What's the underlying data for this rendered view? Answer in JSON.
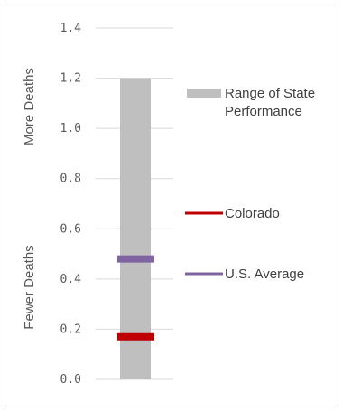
{
  "chart_data": {
    "type": "bar",
    "title": "",
    "xlabel": "",
    "ylabel": "",
    "ylim": [
      0,
      1.4
    ],
    "y_ticks": [
      "0.0",
      "0.2",
      "0.4",
      "0.6",
      "0.8",
      "1.0",
      "1.2",
      "1.4"
    ],
    "grid": true,
    "side_labels": {
      "top": "More Deaths",
      "bottom": "Fewer Deaths"
    },
    "range": {
      "name": "Range of State Performance",
      "min": 0.0,
      "max": 1.2,
      "color": "#bfbfbf"
    },
    "markers": [
      {
        "name": "Colorado",
        "value": 0.17,
        "color": "#c00000"
      },
      {
        "name": "U.S. Average",
        "value": 0.48,
        "color": "#8064a2"
      }
    ],
    "legend": [
      {
        "label_lines": [
          "Range of State",
          "Performance"
        ],
        "kind": "box",
        "color": "#bfbfbf"
      },
      {
        "label_lines": [
          "Colorado"
        ],
        "kind": "line",
        "color": "#c00000"
      },
      {
        "label_lines": [
          "U.S. Average"
        ],
        "kind": "line",
        "color": "#8064a2"
      }
    ]
  }
}
